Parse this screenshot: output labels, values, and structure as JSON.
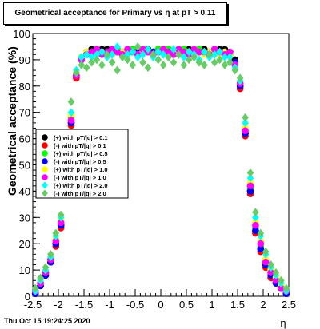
{
  "title": "Geometrical acceptance for Primary vs   η at pT > 0.11",
  "timestamp": "Thu Oct 15 19:24:25 2020",
  "chart_data": {
    "type": "scatter",
    "title": "Geometrical acceptance for Primary vs   η at pT > 0.11",
    "xlabel": "η",
    "ylabel": "Geometrical acceptance (%)",
    "xlim": [
      -2.5,
      2.5
    ],
    "ylim": [
      0,
      100
    ],
    "x_ticks": [
      "-2.5",
      "-2",
      "-1.5",
      "-1",
      "-0.5",
      "0",
      "0.5",
      "1",
      "1.5",
      "2",
      "2.5"
    ],
    "y_ticks": [
      "0",
      "10",
      "20",
      "30",
      "40",
      "50",
      "60",
      "70",
      "80",
      "90",
      "100"
    ],
    "grid": false,
    "legend_position": "middle-left",
    "series": [
      {
        "name": "(+) with pT/|q| > 0.1",
        "color": "#000000",
        "marker": "circle",
        "x": [
          -2.45,
          -2.35,
          -2.25,
          -2.15,
          -2.05,
          -1.95,
          -1.85,
          -1.75,
          -1.65,
          -1.55,
          -1.45,
          -1.35,
          -1.25,
          -1.15,
          -1.05,
          -0.95,
          -0.85,
          -0.75,
          -0.65,
          -0.55,
          -0.45,
          -0.35,
          -0.25,
          -0.15,
          -0.05,
          0.05,
          0.15,
          0.25,
          0.35,
          0.45,
          0.55,
          0.65,
          0.75,
          0.85,
          0.95,
          1.05,
          1.15,
          1.25,
          1.35,
          1.45,
          1.55,
          1.65,
          1.75,
          1.85,
          1.95,
          2.05,
          2.15,
          2.25,
          2.35,
          2.45
        ],
        "y": [
          1,
          4,
          8,
          13,
          20,
          27,
          42,
          66,
          84,
          91,
          93,
          94,
          94,
          94,
          94,
          93,
          94,
          93,
          94,
          94,
          94,
          94,
          94,
          93,
          94,
          94,
          94,
          93,
          94,
          94,
          94,
          93,
          94,
          94,
          93,
          94,
          94,
          94,
          93,
          90,
          80,
          62,
          40,
          25,
          18,
          12,
          8,
          5,
          3,
          1
        ]
      },
      {
        "name": "(-) with pT/|q| > 0.1",
        "color": "#ff0000",
        "marker": "circle",
        "x": [
          -2.45,
          -2.35,
          -2.25,
          -2.15,
          -2.05,
          -1.95,
          -1.85,
          -1.75,
          -1.65,
          -1.55,
          -1.45,
          -1.35,
          -1.25,
          -1.15,
          -1.05,
          -0.95,
          -0.85,
          -0.75,
          -0.65,
          -0.55,
          -0.45,
          -0.35,
          -0.25,
          -0.15,
          -0.05,
          0.05,
          0.15,
          0.25,
          0.35,
          0.45,
          0.55,
          0.65,
          0.75,
          0.85,
          0.95,
          1.05,
          1.15,
          1.25,
          1.35,
          1.45,
          1.55,
          1.65,
          1.75,
          1.85,
          1.95,
          2.05,
          2.15,
          2.25,
          2.35,
          2.45
        ],
        "y": [
          1,
          4,
          8,
          13,
          19,
          26,
          41,
          65,
          83,
          90,
          92,
          93,
          93,
          93,
          93,
          93,
          93,
          92,
          93,
          93,
          93,
          93,
          93,
          92,
          93,
          93,
          93,
          92,
          93,
          93,
          93,
          92,
          93,
          93,
          92,
          93,
          93,
          93,
          92,
          89,
          79,
          61,
          39,
          24,
          17,
          11,
          7,
          5,
          3,
          1
        ]
      },
      {
        "name": "(+) with pT/|q| > 0.5",
        "color": "#00ff00",
        "marker": "circle",
        "x": [
          -2.45,
          -2.35,
          -2.25,
          -2.15,
          -2.05,
          -1.95,
          -1.85,
          -1.75,
          -1.65,
          -1.55,
          -1.45,
          -1.35,
          -1.25,
          -1.15,
          -1.05,
          -0.95,
          -0.85,
          -0.75,
          -0.65,
          -0.55,
          -0.45,
          -0.35,
          -0.25,
          -0.15,
          -0.05,
          0.05,
          0.15,
          0.25,
          0.35,
          0.45,
          0.55,
          0.65,
          0.75,
          0.85,
          0.95,
          1.05,
          1.15,
          1.25,
          1.35,
          1.45,
          1.55,
          1.65,
          1.75,
          1.85,
          1.95,
          2.05,
          2.15,
          2.25,
          2.35,
          2.45
        ],
        "y": [
          2,
          5,
          9,
          14,
          21,
          28,
          43,
          68,
          85,
          91,
          93,
          93,
          94,
          93,
          93,
          93,
          94,
          93,
          93,
          94,
          93,
          94,
          93,
          93,
          94,
          93,
          94,
          93,
          93,
          94,
          93,
          93,
          94,
          93,
          93,
          94,
          93,
          93,
          93,
          89,
          81,
          63,
          41,
          26,
          19,
          13,
          9,
          6,
          3,
          2
        ]
      },
      {
        "name": "(-) with pT/|q| > 0.5",
        "color": "#0000ff",
        "marker": "circle",
        "x": [
          -2.45,
          -2.35,
          -2.25,
          -2.15,
          -2.05,
          -1.95,
          -1.85,
          -1.75,
          -1.65,
          -1.55,
          -1.45,
          -1.35,
          -1.25,
          -1.15,
          -1.05,
          -0.95,
          -0.85,
          -0.75,
          -0.65,
          -0.55,
          -0.45,
          -0.35,
          -0.25,
          -0.15,
          -0.05,
          0.05,
          0.15,
          0.25,
          0.35,
          0.45,
          0.55,
          0.65,
          0.75,
          0.85,
          0.95,
          1.05,
          1.15,
          1.25,
          1.35,
          1.45,
          1.55,
          1.65,
          1.75,
          1.85,
          1.95,
          2.05,
          2.15,
          2.25,
          2.35,
          2.45
        ],
        "y": [
          1,
          4,
          8,
          13,
          20,
          27,
          42,
          66,
          84,
          90,
          92,
          93,
          93,
          93,
          93,
          93,
          93,
          93,
          93,
          93,
          93,
          93,
          93,
          93,
          93,
          93,
          93,
          93,
          93,
          93,
          93,
          93,
          93,
          93,
          93,
          93,
          93,
          93,
          92,
          89,
          80,
          62,
          40,
          25,
          18,
          12,
          8,
          5,
          3,
          1
        ]
      },
      {
        "name": "(+) with pT/|q| > 1.0",
        "color": "#ffff00",
        "marker": "circle",
        "x": [
          -2.45,
          -2.35,
          -2.25,
          -2.15,
          -2.05,
          -1.95,
          -1.85,
          -1.75,
          -1.65,
          -1.55,
          -1.45,
          -1.35,
          -1.25,
          -1.15,
          -1.05,
          -0.95,
          -0.85,
          -0.75,
          -0.65,
          -0.55,
          -0.45,
          -0.35,
          -0.25,
          -0.15,
          -0.05,
          0.05,
          0.15,
          0.25,
          0.35,
          0.45,
          0.55,
          0.65,
          0.75,
          0.85,
          0.95,
          1.05,
          1.15,
          1.25,
          1.35,
          1.45,
          1.55,
          1.65,
          1.75,
          1.85,
          1.95,
          2.05,
          2.15,
          2.25,
          2.35,
          2.45
        ],
        "y": [
          2,
          5,
          9,
          14,
          22,
          29,
          44,
          69,
          85,
          91,
          93,
          92,
          93,
          93,
          92,
          92,
          93,
          93,
          92,
          93,
          92,
          93,
          93,
          92,
          93,
          93,
          92,
          93,
          92,
          93,
          93,
          92,
          93,
          92,
          93,
          93,
          92,
          93,
          92,
          88,
          81,
          64,
          43,
          28,
          21,
          14,
          10,
          7,
          4,
          2
        ]
      },
      {
        "name": "(-) with pT/|q| > 1.0",
        "color": "#ff00ff",
        "marker": "circle",
        "x": [
          -2.45,
          -2.35,
          -2.25,
          -2.15,
          -2.05,
          -1.95,
          -1.85,
          -1.75,
          -1.65,
          -1.55,
          -1.45,
          -1.35,
          -1.25,
          -1.15,
          -1.05,
          -0.95,
          -0.85,
          -0.75,
          -0.65,
          -0.55,
          -0.45,
          -0.35,
          -0.25,
          -0.15,
          -0.05,
          0.05,
          0.15,
          0.25,
          0.35,
          0.45,
          0.55,
          0.65,
          0.75,
          0.85,
          0.95,
          1.05,
          1.15,
          1.25,
          1.35,
          1.45,
          1.55,
          1.65,
          1.75,
          1.85,
          1.95,
          2.05,
          2.15,
          2.25,
          2.35,
          2.45
        ],
        "y": [
          2,
          5,
          9,
          14,
          21,
          28,
          43,
          67,
          84,
          90,
          92,
          93,
          94,
          92,
          93,
          94,
          93,
          92,
          94,
          93,
          92,
          94,
          93,
          92,
          93,
          94,
          93,
          92,
          94,
          93,
          92,
          94,
          93,
          93,
          92,
          94,
          93,
          92,
          93,
          88,
          81,
          63,
          42,
          27,
          20,
          13,
          9,
          6,
          3,
          2
        ]
      },
      {
        "name": "(+) with pT/|q| > 2.0",
        "color": "#00ffff",
        "marker": "diamond",
        "x": [
          -2.45,
          -2.35,
          -2.25,
          -2.15,
          -2.05,
          -1.95,
          -1.85,
          -1.75,
          -1.65,
          -1.55,
          -1.45,
          -1.35,
          -1.25,
          -1.15,
          -1.05,
          -0.95,
          -0.85,
          -0.75,
          -0.65,
          -0.55,
          -0.45,
          -0.35,
          -0.25,
          -0.15,
          -0.05,
          0.05,
          0.15,
          0.25,
          0.35,
          0.45,
          0.55,
          0.65,
          0.75,
          0.85,
          0.95,
          1.05,
          1.15,
          1.25,
          1.35,
          1.45,
          1.55,
          1.65,
          1.75,
          1.85,
          1.95,
          2.05,
          2.15,
          2.25,
          2.35,
          2.45
        ],
        "y": [
          2,
          6,
          10,
          15,
          23,
          30,
          45,
          70,
          86,
          91,
          92,
          91,
          92,
          93,
          91,
          92,
          95,
          91,
          92,
          93,
          91,
          92,
          94,
          91,
          93,
          92,
          91,
          94,
          92,
          91,
          93,
          92,
          90,
          93,
          91,
          92,
          93,
          91,
          91,
          87,
          82,
          66,
          45,
          30,
          23,
          16,
          11,
          8,
          5,
          2
        ]
      },
      {
        "name": "(-) with pT/|q| > 2.0",
        "color": "#66cc66",
        "marker": "diamond",
        "x": [
          -2.45,
          -2.35,
          -2.25,
          -2.15,
          -2.05,
          -1.95,
          -1.85,
          -1.75,
          -1.65,
          -1.55,
          -1.45,
          -1.35,
          -1.25,
          -1.15,
          -1.05,
          -0.95,
          -0.85,
          -0.75,
          -0.65,
          -0.55,
          -0.45,
          -0.35,
          -0.25,
          -0.15,
          -0.05,
          0.05,
          0.15,
          0.25,
          0.35,
          0.45,
          0.55,
          0.65,
          0.75,
          0.85,
          0.95,
          1.05,
          1.15,
          1.25,
          1.35,
          1.45,
          1.55,
          1.65,
          1.75,
          1.85,
          1.95,
          2.05,
          2.15,
          2.25,
          2.35,
          2.45
        ],
        "y": [
          3,
          7,
          11,
          16,
          24,
          31,
          46,
          74,
          85,
          88,
          87,
          89,
          90,
          88,
          92,
          89,
          86,
          91,
          90,
          88,
          95,
          89,
          87,
          92,
          90,
          88,
          91,
          89,
          92,
          88,
          90,
          91,
          89,
          88,
          92,
          89,
          90,
          88,
          89,
          86,
          83,
          68,
          47,
          32,
          24,
          17,
          12,
          9,
          6,
          3
        ]
      }
    ]
  }
}
